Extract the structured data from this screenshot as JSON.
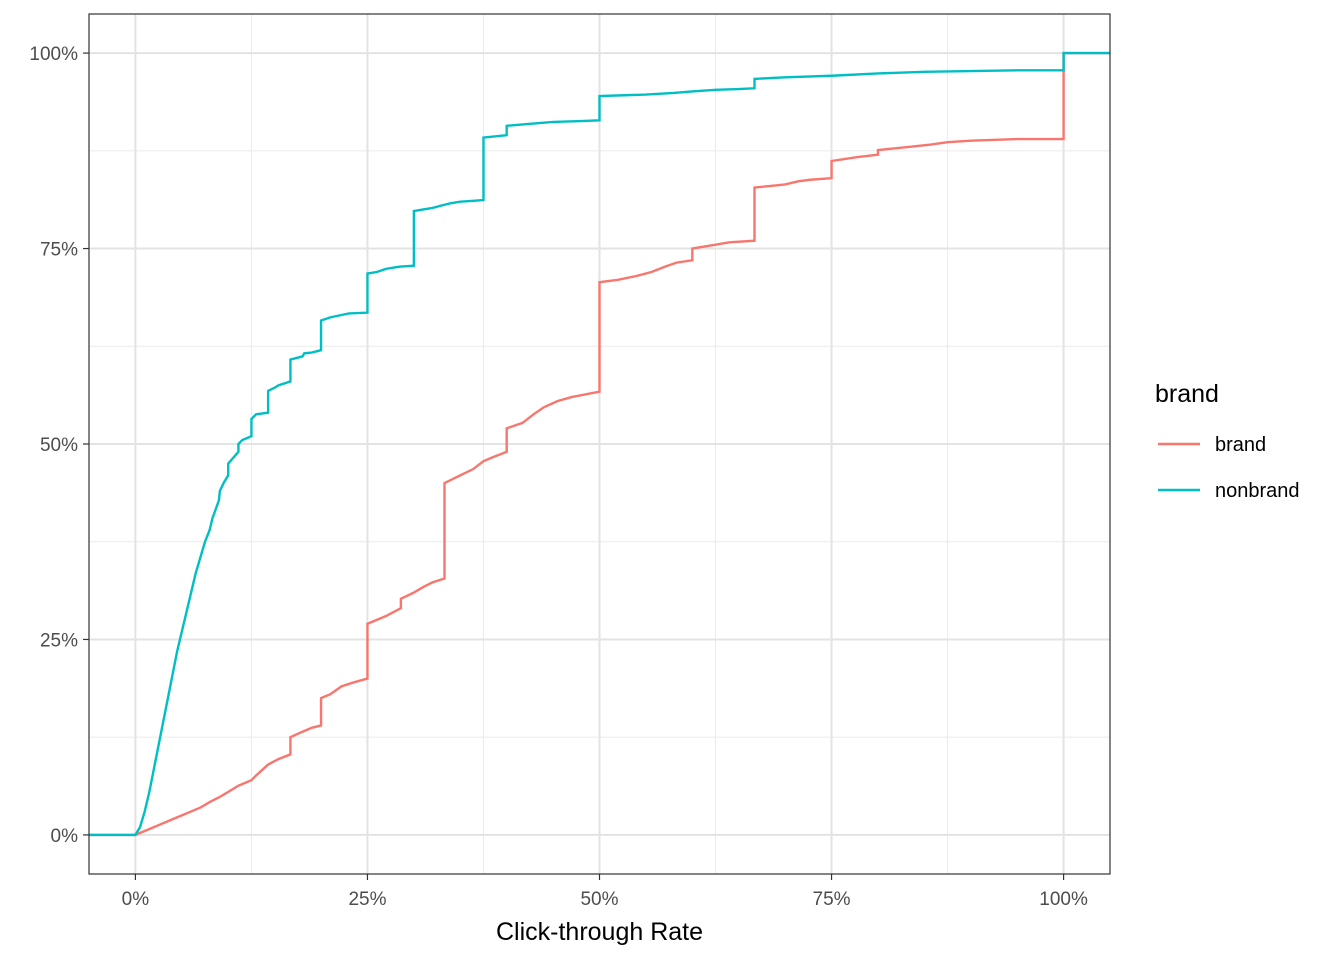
{
  "chart_data": {
    "type": "line",
    "step": true,
    "title": "",
    "xlabel": "Click-through Rate",
    "ylabel": "",
    "xlim": [
      -0.05,
      1.05
    ],
    "ylim": [
      -0.05,
      1.05
    ],
    "x_ticks": [
      0,
      0.25,
      0.5,
      0.75,
      1.0
    ],
    "x_tick_labels": [
      "0%",
      "25%",
      "50%",
      "75%",
      "100%"
    ],
    "y_ticks": [
      0,
      0.25,
      0.5,
      0.75,
      1.0
    ],
    "y_tick_labels": [
      "0%",
      "25%",
      "50%",
      "75%",
      "100%"
    ],
    "grid": true,
    "legend": {
      "title": "brand",
      "position": "right"
    },
    "series": [
      {
        "name": "brand",
        "color": "#F8766D",
        "points": [
          [
            -0.05,
            0
          ],
          [
            0,
            0
          ],
          [
            0.01,
            0.005
          ],
          [
            0.02,
            0.01
          ],
          [
            0.03,
            0.015
          ],
          [
            0.04,
            0.02
          ],
          [
            0.05,
            0.025
          ],
          [
            0.06,
            0.03
          ],
          [
            0.07,
            0.035
          ],
          [
            0.08,
            0.042
          ],
          [
            0.09,
            0.048
          ],
          [
            0.1,
            0.055
          ],
          [
            0.111,
            0.063
          ],
          [
            0.125,
            0.07
          ],
          [
            0.13,
            0.076
          ],
          [
            0.143,
            0.09
          ],
          [
            0.154,
            0.097
          ],
          [
            0.167,
            0.103
          ],
          [
            0.167,
            0.125
          ],
          [
            0.18,
            0.132
          ],
          [
            0.19,
            0.137
          ],
          [
            0.2,
            0.14
          ],
          [
            0.2,
            0.175
          ],
          [
            0.21,
            0.18
          ],
          [
            0.222,
            0.19
          ],
          [
            0.235,
            0.195
          ],
          [
            0.25,
            0.2
          ],
          [
            0.25,
            0.27
          ],
          [
            0.26,
            0.275
          ],
          [
            0.27,
            0.28
          ],
          [
            0.286,
            0.29
          ],
          [
            0.286,
            0.302
          ],
          [
            0.3,
            0.31
          ],
          [
            0.31,
            0.317
          ],
          [
            0.32,
            0.323
          ],
          [
            0.333,
            0.328
          ],
          [
            0.333,
            0.45
          ],
          [
            0.35,
            0.46
          ],
          [
            0.364,
            0.468
          ],
          [
            0.375,
            0.478
          ],
          [
            0.385,
            0.483
          ],
          [
            0.4,
            0.49
          ],
          [
            0.4,
            0.52
          ],
          [
            0.417,
            0.527
          ],
          [
            0.429,
            0.538
          ],
          [
            0.44,
            0.547
          ],
          [
            0.455,
            0.555
          ],
          [
            0.47,
            0.56
          ],
          [
            0.5,
            0.567
          ],
          [
            0.5,
            0.707
          ],
          [
            0.52,
            0.71
          ],
          [
            0.54,
            0.715
          ],
          [
            0.556,
            0.72
          ],
          [
            0.571,
            0.727
          ],
          [
            0.583,
            0.732
          ],
          [
            0.6,
            0.735
          ],
          [
            0.6,
            0.75
          ],
          [
            0.625,
            0.755
          ],
          [
            0.64,
            0.758
          ],
          [
            0.667,
            0.76
          ],
          [
            0.667,
            0.828
          ],
          [
            0.7,
            0.832
          ],
          [
            0.714,
            0.836
          ],
          [
            0.727,
            0.838
          ],
          [
            0.75,
            0.84
          ],
          [
            0.75,
            0.862
          ],
          [
            0.778,
            0.867
          ],
          [
            0.8,
            0.87
          ],
          [
            0.8,
            0.876
          ],
          [
            0.833,
            0.88
          ],
          [
            0.857,
            0.883
          ],
          [
            0.875,
            0.886
          ],
          [
            0.9,
            0.888
          ],
          [
            0.95,
            0.89
          ],
          [
            1.0,
            0.89
          ],
          [
            1.0,
            1.0
          ],
          [
            1.05,
            1.0
          ]
        ]
      },
      {
        "name": "nonbrand",
        "color": "#00BFC4",
        "points": [
          [
            -0.05,
            0
          ],
          [
            0,
            0
          ],
          [
            0.005,
            0.01
          ],
          [
            0.01,
            0.03
          ],
          [
            0.015,
            0.055
          ],
          [
            0.02,
            0.085
          ],
          [
            0.025,
            0.115
          ],
          [
            0.03,
            0.145
          ],
          [
            0.035,
            0.175
          ],
          [
            0.04,
            0.205
          ],
          [
            0.045,
            0.235
          ],
          [
            0.05,
            0.26
          ],
          [
            0.055,
            0.285
          ],
          [
            0.06,
            0.31
          ],
          [
            0.065,
            0.335
          ],
          [
            0.07,
            0.355
          ],
          [
            0.075,
            0.375
          ],
          [
            0.08,
            0.39
          ],
          [
            0.083,
            0.405
          ],
          [
            0.09,
            0.428
          ],
          [
            0.091,
            0.44
          ],
          [
            0.095,
            0.45
          ],
          [
            0.1,
            0.46
          ],
          [
            0.1,
            0.475
          ],
          [
            0.111,
            0.49
          ],
          [
            0.111,
            0.5
          ],
          [
            0.115,
            0.505
          ],
          [
            0.125,
            0.51
          ],
          [
            0.125,
            0.532
          ],
          [
            0.13,
            0.538
          ],
          [
            0.143,
            0.54
          ],
          [
            0.143,
            0.568
          ],
          [
            0.15,
            0.572
          ],
          [
            0.154,
            0.575
          ],
          [
            0.167,
            0.58
          ],
          [
            0.167,
            0.608
          ],
          [
            0.18,
            0.612
          ],
          [
            0.182,
            0.616
          ],
          [
            0.19,
            0.617
          ],
          [
            0.2,
            0.62
          ],
          [
            0.2,
            0.658
          ],
          [
            0.21,
            0.662
          ],
          [
            0.222,
            0.665
          ],
          [
            0.23,
            0.667
          ],
          [
            0.25,
            0.668
          ],
          [
            0.25,
            0.718
          ],
          [
            0.26,
            0.72
          ],
          [
            0.27,
            0.724
          ],
          [
            0.28,
            0.726
          ],
          [
            0.286,
            0.727
          ],
          [
            0.3,
            0.728
          ],
          [
            0.3,
            0.798
          ],
          [
            0.32,
            0.802
          ],
          [
            0.333,
            0.806
          ],
          [
            0.34,
            0.808
          ],
          [
            0.35,
            0.81
          ],
          [
            0.364,
            0.811
          ],
          [
            0.375,
            0.812
          ],
          [
            0.375,
            0.892
          ],
          [
            0.4,
            0.895
          ],
          [
            0.4,
            0.907
          ],
          [
            0.43,
            0.91
          ],
          [
            0.45,
            0.912
          ],
          [
            0.48,
            0.913
          ],
          [
            0.5,
            0.914
          ],
          [
            0.5,
            0.945
          ],
          [
            0.55,
            0.947
          ],
          [
            0.58,
            0.949
          ],
          [
            0.6,
            0.951
          ],
          [
            0.625,
            0.953
          ],
          [
            0.65,
            0.954
          ],
          [
            0.667,
            0.955
          ],
          [
            0.667,
            0.967
          ],
          [
            0.7,
            0.969
          ],
          [
            0.75,
            0.971
          ],
          [
            0.8,
            0.974
          ],
          [
            0.85,
            0.976
          ],
          [
            0.9,
            0.977
          ],
          [
            0.95,
            0.978
          ],
          [
            1.0,
            0.978
          ],
          [
            1.0,
            1.0
          ],
          [
            1.05,
            1.0
          ]
        ]
      }
    ]
  }
}
